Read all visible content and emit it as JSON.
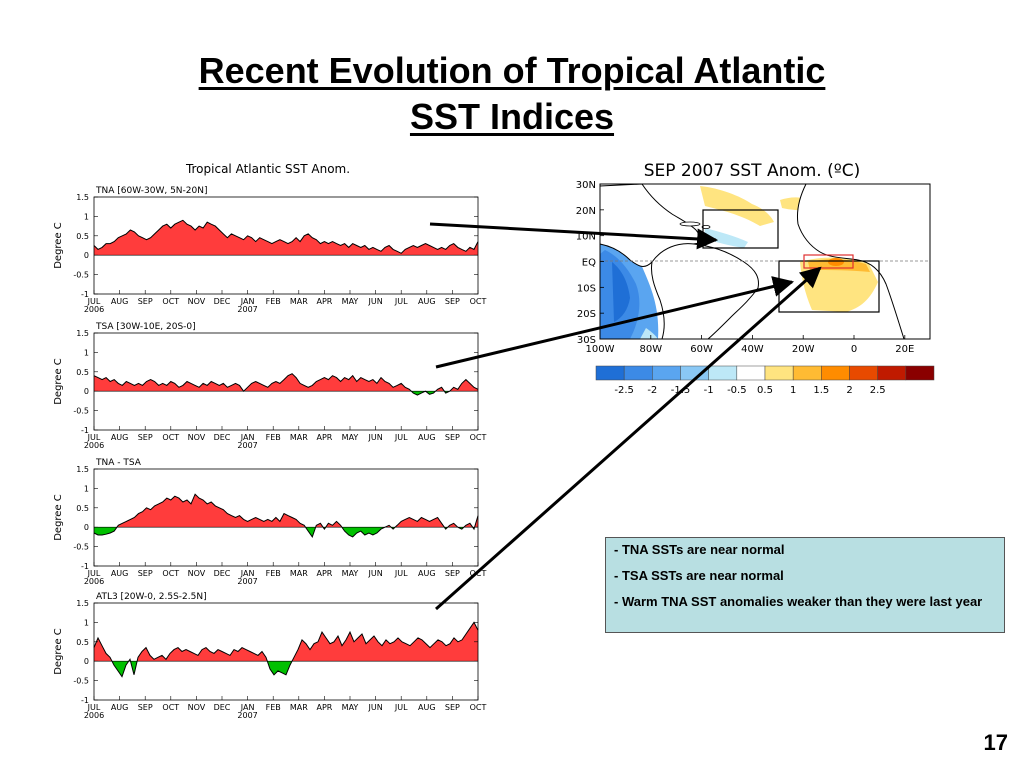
{
  "title": {
    "line1": "Recent Evolution of Tropical Atlantic",
    "line2": "SST Indices"
  },
  "chart_data": [
    {
      "type": "area",
      "title": "Tropical Atlantic SST Anom.",
      "panels": [
        {
          "label": "TNA [60W-30W, 5N-20N]",
          "ylabel": "Degree C",
          "ylim": [
            -1,
            1.5
          ],
          "values": [
            0.25,
            0.15,
            0.2,
            0.3,
            0.3,
            0.35,
            0.45,
            0.5,
            0.55,
            0.65,
            0.6,
            0.5,
            0.45,
            0.4,
            0.45,
            0.55,
            0.65,
            0.75,
            0.8,
            0.7,
            0.8,
            0.85,
            0.9,
            0.8,
            0.75,
            0.65,
            0.75,
            0.7,
            0.85,
            0.8,
            0.75,
            0.65,
            0.55,
            0.45,
            0.55,
            0.5,
            0.45,
            0.4,
            0.5,
            0.45,
            0.35,
            0.45,
            0.4,
            0.35,
            0.3,
            0.35,
            0.4,
            0.35,
            0.3,
            0.35,
            0.45,
            0.35,
            0.5,
            0.55,
            0.45,
            0.4,
            0.3,
            0.35,
            0.3,
            0.35,
            0.3,
            0.25,
            0.3,
            0.2,
            0.3,
            0.25,
            0.2,
            0.25,
            0.15,
            0.2,
            0.15,
            0.1,
            0.2,
            0.25,
            0.15,
            0.1,
            0.05,
            0.15,
            0.2,
            0.25,
            0.2,
            0.25,
            0.3,
            0.25,
            0.2,
            0.15,
            0.2,
            0.15,
            0.25,
            0.3,
            0.2,
            0.15,
            0.1,
            0.2,
            0.15,
            0.35
          ]
        },
        {
          "label": "TSA [30W-10E, 20S-0]",
          "ylabel": "Degree C",
          "ylim": [
            -1,
            1.5
          ],
          "values": [
            0.4,
            0.35,
            0.3,
            0.35,
            0.25,
            0.3,
            0.2,
            0.15,
            0.25,
            0.2,
            0.15,
            0.2,
            0.15,
            0.25,
            0.3,
            0.25,
            0.15,
            0.2,
            0.15,
            0.25,
            0.2,
            0.1,
            0.15,
            0.25,
            0.2,
            0.15,
            0.1,
            0.2,
            0.15,
            0.25,
            0.2,
            0.15,
            0.2,
            0.1,
            0.15,
            0.2,
            0.15,
            0.0,
            0.1,
            0.2,
            0.25,
            0.2,
            0.15,
            0.1,
            0.2,
            0.25,
            0.2,
            0.3,
            0.4,
            0.45,
            0.35,
            0.2,
            0.15,
            0.1,
            0.15,
            0.25,
            0.3,
            0.35,
            0.3,
            0.4,
            0.35,
            0.25,
            0.35,
            0.3,
            0.4,
            0.25,
            0.35,
            0.3,
            0.25,
            0.3,
            0.2,
            0.35,
            0.25,
            0.2,
            0.1,
            0.15,
            0.2,
            0.1,
            0.05,
            -0.05,
            -0.1,
            -0.05,
            0.0,
            -0.08,
            -0.05,
            0.05,
            0.1,
            -0.05,
            0.0,
            0.1,
            0.05,
            0.2,
            0.3,
            0.2,
            0.1,
            0.05
          ]
        },
        {
          "label": "TNA - TSA",
          "ylabel": "Degree C",
          "ylim": [
            -1,
            1.5
          ],
          "values": [
            -0.15,
            -0.2,
            -0.2,
            -0.18,
            -0.15,
            -0.1,
            0.05,
            0.1,
            0.15,
            0.2,
            0.25,
            0.35,
            0.4,
            0.5,
            0.45,
            0.55,
            0.6,
            0.65,
            0.75,
            0.7,
            0.8,
            0.75,
            0.65,
            0.7,
            0.6,
            0.85,
            0.75,
            0.7,
            0.6,
            0.65,
            0.55,
            0.5,
            0.45,
            0.35,
            0.3,
            0.25,
            0.3,
            0.2,
            0.15,
            0.2,
            0.25,
            0.2,
            0.15,
            0.2,
            0.15,
            0.25,
            0.15,
            0.35,
            0.3,
            0.25,
            0.2,
            0.1,
            0.05,
            -0.1,
            -0.25,
            0.05,
            0.1,
            -0.05,
            0.1,
            0.05,
            0.15,
            0.05,
            -0.1,
            -0.2,
            -0.25,
            -0.15,
            -0.1,
            -0.2,
            -0.15,
            -0.2,
            -0.15,
            -0.05,
            0.0,
            0.05,
            -0.05,
            0.05,
            0.15,
            0.2,
            0.25,
            0.2,
            0.15,
            0.25,
            0.2,
            0.15,
            0.2,
            0.25,
            0.1,
            -0.05,
            0.05,
            0.1,
            0.0,
            -0.05,
            0.05,
            0.1,
            -0.05,
            0.3
          ]
        },
        {
          "label": "ATL3 [20W-0, 2.5S-2.5N]",
          "ylabel": "Degree C",
          "ylim": [
            -1,
            1.5
          ],
          "values": [
            0.35,
            0.6,
            0.4,
            0.2,
            0.1,
            -0.1,
            -0.25,
            -0.4,
            -0.1,
            0.05,
            -0.35,
            0.1,
            0.25,
            0.35,
            0.15,
            0.05,
            0.1,
            0.15,
            0.05,
            0.2,
            0.3,
            0.35,
            0.25,
            0.3,
            0.25,
            0.2,
            0.15,
            0.3,
            0.35,
            0.25,
            0.2,
            0.3,
            0.25,
            0.2,
            0.15,
            0.3,
            0.25,
            0.35,
            0.3,
            0.25,
            0.2,
            0.15,
            0.25,
            0.1,
            -0.2,
            -0.35,
            -0.25,
            -0.3,
            -0.35,
            -0.1,
            0.1,
            0.3,
            0.55,
            0.45,
            0.3,
            0.45,
            0.5,
            0.75,
            0.6,
            0.45,
            0.5,
            0.65,
            0.4,
            0.55,
            0.75,
            0.5,
            0.6,
            0.7,
            0.45,
            0.55,
            0.65,
            0.5,
            0.4,
            0.55,
            0.45,
            0.5,
            0.6,
            0.5,
            0.45,
            0.4,
            0.5,
            0.6,
            0.55,
            0.45,
            0.35,
            0.45,
            0.55,
            0.5,
            0.4,
            0.45,
            0.6,
            0.5,
            0.55,
            0.7,
            0.85,
            1.0,
            0.8
          ]
        }
      ],
      "months": [
        "JUL",
        "AUG",
        "SEP",
        "OCT",
        "NOV",
        "DEC",
        "JAN",
        "FEB",
        "MAR",
        "APR",
        "MAY",
        "JUN",
        "JUL",
        "AUG",
        "SEP",
        "OCT"
      ],
      "years": {
        "first": "2006",
        "jan": "2007"
      },
      "yticks": [
        "-1",
        "-0.5",
        "0",
        "0.5",
        "1",
        "1.5"
      ],
      "colors": {
        "positive": "#ff3c3c",
        "negative": "#00c000",
        "line": "#000000"
      }
    },
    {
      "type": "heatmap",
      "title": "SEP 2007 SST Anom. (ºC)",
      "lat_labels": [
        "30N",
        "20N",
        "10N",
        "EQ",
        "10S",
        "20S",
        "30S"
      ],
      "lon_labels": [
        "100W",
        "80W",
        "60W",
        "40W",
        "20W",
        "0",
        "20E"
      ],
      "colorbar": {
        "labels": [
          "-2.5",
          "-2",
          "-1.5",
          "-1",
          "-0.5",
          "0.5",
          "1",
          "1.5",
          "2",
          "2.5"
        ],
        "colors": [
          "#1f6fd6",
          "#3c8ae6",
          "#5aa5f0",
          "#8ac8f5",
          "#bde8f7",
          "#ffffff",
          "#ffe480",
          "#ffbb33",
          "#ff8c00",
          "#e84a00",
          "#c01a00",
          "#8a0000"
        ]
      }
    }
  ],
  "notes": [
    "TNA SSTs are near normal",
    "TSA SSTs are near normal",
    "Warm TNA SST anomalies weaker than they were last year"
  ],
  "page_number": "17"
}
